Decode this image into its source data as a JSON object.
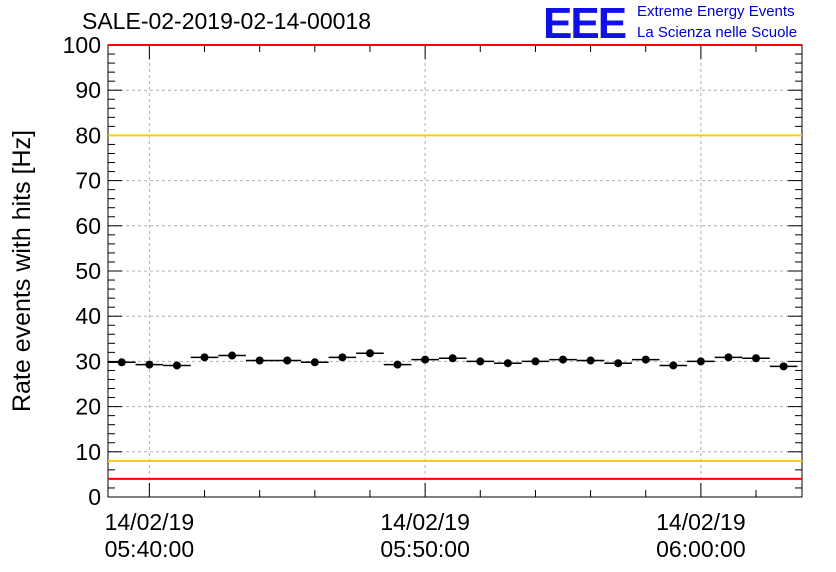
{
  "header": {
    "title": "SALE-02-2019-02-14-00018",
    "logo_text": "EEE",
    "logo_line1": "Extreme Energy Events",
    "logo_line2": "La Scienza nelle Scuole"
  },
  "colors": {
    "points": "#000000",
    "red_limit": "#ff0000",
    "yellow_limit": "#ffcc00",
    "grid": "#b0b0b0",
    "logo": "#1010e8"
  },
  "chart_data": {
    "type": "scatter",
    "title": "SALE-02-2019-02-14-00018",
    "xlabel": "",
    "ylabel": "Rate events with hits [Hz]",
    "ylim": [
      0,
      100
    ],
    "yticks": [
      0,
      10,
      20,
      30,
      40,
      50,
      60,
      70,
      80,
      90,
      100
    ],
    "xlim": [
      "2019-02-14 05:38:30",
      "2019-02-14 06:03:40"
    ],
    "xticks": [
      {
        "date": "14/02/19",
        "time": "05:40:00"
      },
      {
        "date": "14/02/19",
        "time": "05:50:00"
      },
      {
        "date": "14/02/19",
        "time": "06:00:00"
      }
    ],
    "grid": true,
    "horizontal_lines": [
      {
        "y": 100,
        "color": "red"
      },
      {
        "y": 80,
        "color": "yellow"
      },
      {
        "y": 8,
        "color": "yellow"
      },
      {
        "y": 4,
        "color": "red"
      }
    ],
    "series": [
      {
        "x": [
          "05:39:00",
          "05:40:00",
          "05:41:00",
          "05:42:00",
          "05:43:00",
          "05:44:00",
          "05:45:00",
          "05:46:00",
          "05:47:00",
          "05:48:00",
          "05:49:00",
          "05:50:00",
          "05:51:00",
          "05:52:00",
          "05:53:00",
          "05:54:00",
          "05:55:00",
          "05:56:00",
          "05:57:00",
          "05:58:00",
          "05:59:00",
          "06:00:00",
          "06:01:00",
          "06:02:00",
          "06:03:00"
        ],
        "y": [
          29.8,
          29.3,
          29.1,
          30.9,
          31.3,
          30.2,
          30.2,
          29.8,
          30.9,
          31.8,
          29.3,
          30.4,
          30.7,
          30.0,
          29.6,
          30.0,
          30.4,
          30.2,
          29.6,
          30.4,
          29.1,
          30.0,
          30.9,
          30.7,
          28.9
        ],
        "xerr_seconds": 30
      }
    ]
  }
}
